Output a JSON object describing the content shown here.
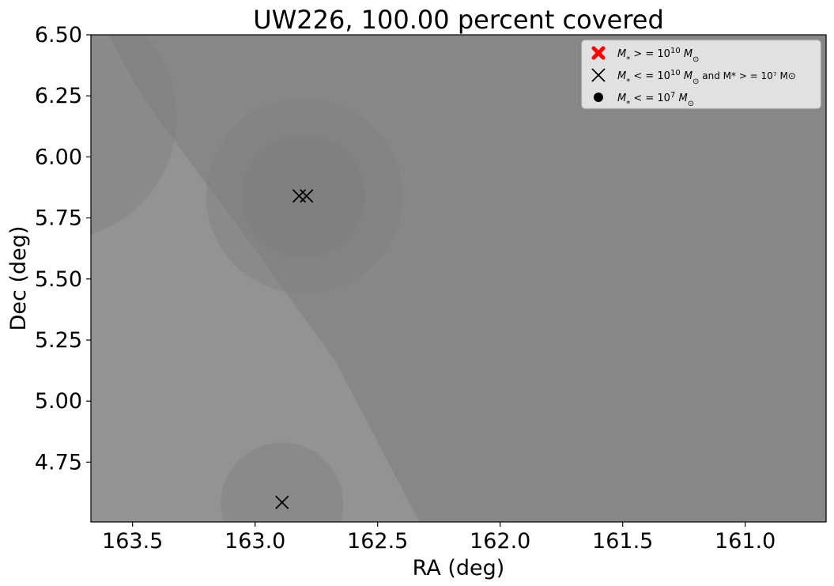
{
  "chart_data": {
    "type": "scatter",
    "title": "UW226, 100.00 percent covered",
    "xlabel": "RA (deg)",
    "ylabel": "Dec (deg)",
    "xlim": [
      163.67,
      160.67
    ],
    "ylim": [
      4.505,
      6.5
    ],
    "x_inverted": true,
    "xticks": [
      163.5,
      163.0,
      162.5,
      162.0,
      161.5,
      161.0
    ],
    "xtick_labels": [
      "163.5",
      "163.0",
      "162.5",
      "162.0",
      "161.5",
      "161.0"
    ],
    "yticks": [
      4.75,
      5.0,
      5.25,
      5.5,
      5.75,
      6.0,
      6.25,
      6.5
    ],
    "ytick_labels": [
      "4.75",
      "5.00",
      "5.25",
      "5.50",
      "5.75",
      "6.00",
      "6.25",
      "6.50"
    ],
    "grid": false,
    "legend_position": "top-right",
    "colors": {
      "background_region": "#878787",
      "coverage_strip": "#939393",
      "circle_fill": "#7a7a7a",
      "legend_bg": "#e6e6e6",
      "high_mass_marker": "#ff0000",
      "mid_mass_marker": "#000000",
      "low_mass_marker": "#000000"
    },
    "coverage_strip": {
      "ra": [
        163.67,
        163.6,
        163.45,
        163.0,
        162.67,
        162.33,
        163.67
      ],
      "dec": [
        6.5,
        6.5,
        6.23,
        5.62,
        5.16,
        4.505,
        4.505
      ]
    },
    "coverage_circles": [
      {
        "ra": 162.8,
        "dec": 5.84,
        "radius_deg": 0.4
      },
      {
        "ra": 162.8,
        "dec": 5.84,
        "radius_deg": 0.25
      },
      {
        "ra": 163.82,
        "dec": 6.16,
        "radius_deg": 0.5
      },
      {
        "ra": 162.89,
        "dec": 4.58,
        "radius_deg": 0.25
      }
    ],
    "series": [
      {
        "name": "$M_*>=10^{10}M_\\odot$",
        "marker": "X-filled",
        "x": [],
        "y": []
      },
      {
        "name": "$M_*<=10^{10}M_\\odot$ and $M_*>=10^7M_\\odot$",
        "marker": "x",
        "x": [
          162.82,
          162.79,
          162.89
        ],
        "y": [
          5.84,
          5.84,
          4.585
        ]
      },
      {
        "name": "$M_*<=10^7M_\\odot$",
        "marker": "dot",
        "x": [],
        "y": []
      }
    ],
    "legend": [
      {
        "marker": "X-filled",
        "color": "#ff0000",
        "label_pre": "M",
        "label_sub": "*",
        "label_mid": " > = 10",
        "label_sup": "10",
        "label_post": " M",
        "label_post_sub": "⊙",
        "label_tail": ""
      },
      {
        "marker": "x",
        "color": "#000000",
        "label_pre": "M",
        "label_sub": "*",
        "label_mid": " < = 10",
        "label_sup": "10",
        "label_post": " M",
        "label_post_sub": "⊙",
        "label_tail": "  and  M* > = 10⁷ M⊙"
      },
      {
        "marker": "dot",
        "color": "#000000",
        "label_pre": "M",
        "label_sub": "*",
        "label_mid": " < = 10",
        "label_sup": "7",
        "label_post": " M",
        "label_post_sub": "⊙",
        "label_tail": ""
      }
    ]
  }
}
